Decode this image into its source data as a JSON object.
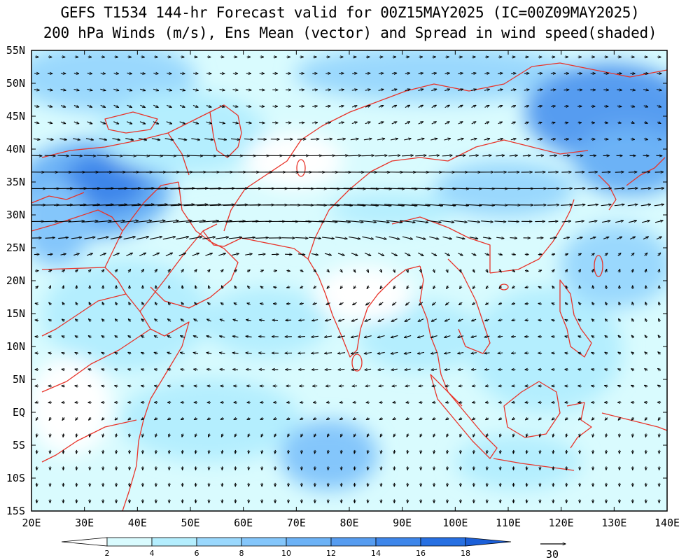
{
  "title": {
    "line1": "GEFS T1534 144-hr Forecast valid for 00Z15MAY2025 (IC=00Z09MAY2025)",
    "line2": "200 hPa Winds (m/s), Ens Mean (vector) and Spread in wind speed(shaded)"
  },
  "axes": {
    "lat_labels": [
      "55N",
      "50N",
      "45N",
      "40N",
      "35N",
      "30N",
      "25N",
      "20N",
      "15N",
      "10N",
      "5N",
      "EQ",
      "5S",
      "10S",
      "15S"
    ],
    "lat_values": [
      55,
      50,
      45,
      40,
      35,
      30,
      25,
      20,
      15,
      10,
      5,
      0,
      -5,
      -10,
      -15
    ],
    "lon_labels": [
      "20E",
      "30E",
      "40E",
      "50E",
      "60E",
      "70E",
      "80E",
      "90E",
      "100E",
      "110E",
      "120E",
      "130E",
      "140E"
    ],
    "lon_values": [
      20,
      30,
      40,
      50,
      60,
      70,
      80,
      90,
      100,
      110,
      120,
      130,
      140
    ],
    "lon_range": [
      20,
      140
    ],
    "lat_range": [
      -15,
      55
    ]
  },
  "colorbar": {
    "levels": [
      "2",
      "4",
      "6",
      "8",
      "10",
      "12",
      "14",
      "16",
      "18"
    ],
    "colors": [
      "#ffffff",
      "#d9fbfe",
      "#b4eefe",
      "#9ad8fd",
      "#84c6fb",
      "#6cb2f6",
      "#569cf0",
      "#3e86ea",
      "#2770e2",
      "#1b5fd8"
    ]
  },
  "reference_vector": {
    "label": "30"
  },
  "colors": {
    "coastline": "#e8342a",
    "arrow": "#000000",
    "frame": "#000000"
  }
}
